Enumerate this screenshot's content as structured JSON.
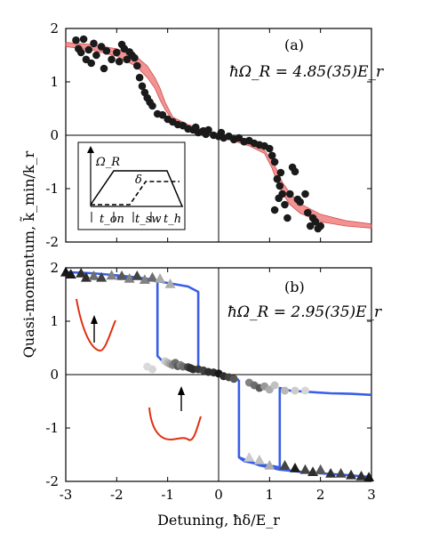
{
  "chart_data": [
    {
      "type": "scatter",
      "panel_label": "(a)",
      "annotation": "ħΩ_R = 4.85(35)E_r",
      "xlim": [
        -3,
        3
      ],
      "ylim": [
        -2,
        2
      ],
      "yticks": [
        "2",
        "1",
        "0",
        "-1",
        "-2"
      ],
      "ylabel": "Quasi-momentum, k̃_min/k_r",
      "band": {
        "x": [
          -3.0,
          -2.5,
          -2.0,
          -1.6,
          -1.4,
          -1.25,
          -1.15,
          -1.05,
          -0.9,
          -0.6,
          -0.3,
          0.0,
          0.3,
          0.6,
          0.9,
          1.05,
          1.15,
          1.25,
          1.4,
          1.6,
          2.0,
          2.5,
          3.0
        ],
        "upper": [
          1.74,
          1.7,
          1.62,
          1.46,
          1.3,
          1.08,
          0.88,
          0.62,
          0.34,
          0.2,
          0.11,
          0.02,
          -0.07,
          -0.16,
          -0.28,
          -0.48,
          -0.66,
          -0.88,
          -1.08,
          -1.28,
          -1.48,
          -1.6,
          -1.66
        ],
        "lower": [
          1.66,
          1.6,
          1.48,
          1.28,
          1.08,
          0.88,
          0.66,
          0.48,
          0.28,
          0.16,
          0.07,
          -0.02,
          -0.11,
          -0.2,
          -0.34,
          -0.62,
          -0.88,
          -1.08,
          -1.3,
          -1.46,
          -1.62,
          -1.7,
          -1.74
        ]
      },
      "points": [
        [
          -2.8,
          1.78
        ],
        [
          -2.75,
          1.62
        ],
        [
          -2.7,
          1.55
        ],
        [
          -2.65,
          1.8
        ],
        [
          -2.6,
          1.42
        ],
        [
          -2.55,
          1.6
        ],
        [
          -2.5,
          1.35
        ],
        [
          -2.45,
          1.72
        ],
        [
          -2.4,
          1.5
        ],
        [
          -2.3,
          1.66
        ],
        [
          -2.25,
          1.25
        ],
        [
          -2.2,
          1.58
        ],
        [
          -2.1,
          1.42
        ],
        [
          -2.0,
          1.55
        ],
        [
          -1.95,
          1.38
        ],
        [
          -1.9,
          1.7
        ],
        [
          -1.85,
          1.62
        ],
        [
          -1.8,
          1.42
        ],
        [
          -1.75,
          1.56
        ],
        [
          -1.7,
          1.5
        ],
        [
          -1.65,
          1.45
        ],
        [
          -1.6,
          1.3
        ],
        [
          -1.55,
          1.08
        ],
        [
          -1.5,
          0.92
        ],
        [
          -1.45,
          0.8
        ],
        [
          -1.4,
          0.7
        ],
        [
          -1.35,
          0.62
        ],
        [
          -1.3,
          0.55
        ],
        [
          -1.2,
          0.4
        ],
        [
          -1.1,
          0.38
        ],
        [
          -1.0,
          0.3
        ],
        [
          -0.9,
          0.25
        ],
        [
          -0.8,
          0.2
        ],
        [
          -0.7,
          0.18
        ],
        [
          -0.6,
          0.12
        ],
        [
          -0.5,
          0.1
        ],
        [
          -0.45,
          0.15
        ],
        [
          -0.4,
          0.05
        ],
        [
          -0.3,
          0.08
        ],
        [
          -0.25,
          0.02
        ],
        [
          -0.2,
          0.1
        ],
        [
          -0.1,
          0.0
        ],
        [
          0.0,
          -0.02
        ],
        [
          0.05,
          0.05
        ],
        [
          0.1,
          -0.05
        ],
        [
          0.2,
          -0.02
        ],
        [
          0.3,
          -0.08
        ],
        [
          0.4,
          -0.05
        ],
        [
          0.5,
          -0.12
        ],
        [
          0.6,
          -0.1
        ],
        [
          0.7,
          -0.15
        ],
        [
          0.8,
          -0.18
        ],
        [
          0.9,
          -0.2
        ],
        [
          1.0,
          -0.25
        ],
        [
          1.05,
          -0.38
        ],
        [
          1.1,
          -0.5
        ],
        [
          1.15,
          -0.82
        ],
        [
          1.2,
          -0.95
        ],
        [
          1.25,
          -1.1
        ],
        [
          1.3,
          -1.3
        ],
        [
          1.35,
          -1.55
        ],
        [
          1.1,
          -1.4
        ],
        [
          1.18,
          -1.18
        ],
        [
          1.22,
          -0.7
        ],
        [
          1.4,
          -1.1
        ],
        [
          1.45,
          -0.6
        ],
        [
          1.5,
          -0.68
        ],
        [
          1.55,
          -1.2
        ],
        [
          1.6,
          -1.25
        ],
        [
          1.7,
          -1.1
        ],
        [
          1.75,
          -1.45
        ],
        [
          1.8,
          -1.7
        ],
        [
          1.85,
          -1.55
        ],
        [
          1.9,
          -1.62
        ],
        [
          1.95,
          -1.75
        ],
        [
          2.0,
          -1.7
        ]
      ],
      "inset": {
        "labels": [
          "Ω_R",
          "δ",
          "t_on",
          "t_sw",
          "t_h"
        ]
      }
    },
    {
      "type": "line",
      "panel_label": "(b)",
      "annotation": "ħΩ_R = 2.95(35)E_r",
      "xlim": [
        -3,
        3
      ],
      "ylim": [
        -2,
        2
      ],
      "xticks": [
        "-3",
        "-2",
        "-1",
        "0",
        "1",
        "2",
        "3"
      ],
      "yticks": [
        "2",
        "1",
        "0",
        "-1",
        "-2"
      ],
      "xlabel": "Detuning, ħδ/E_r",
      "curves": [
        {
          "x": [
            -3.0,
            -2.5,
            -2.0,
            -1.6,
            -1.3,
            -1.2,
            -1.2,
            -1.1,
            -0.8,
            -0.5,
            -0.4
          ],
          "y": [
            1.92,
            1.9,
            1.86,
            1.82,
            1.78,
            1.75,
            0.35,
            0.25,
            0.18,
            0.12,
            0.1
          ]
        },
        {
          "x": [
            -0.4,
            -0.4,
            -0.6,
            -0.9,
            -1.2,
            -1.6,
            -2.0
          ],
          "y": [
            0.1,
            1.55,
            1.65,
            1.7,
            1.75,
            1.8,
            1.82
          ]
        },
        {
          "x": [
            0.4,
            0.4,
            0.5,
            0.8,
            1.1,
            1.2,
            1.2,
            1.4,
            1.7,
            2.2,
            2.6,
            3.0
          ],
          "y": [
            -0.1,
            -1.55,
            -1.62,
            -1.68,
            -1.72,
            -1.74,
            -0.25,
            -0.3,
            -0.32,
            -0.35,
            -0.36,
            -0.38
          ]
        },
        {
          "x": [
            0.4,
            0.8,
            1.2,
            1.6,
            2.0,
            2.5,
            3.0
          ],
          "y": [
            -1.55,
            -1.7,
            -1.78,
            -1.82,
            -1.85,
            -1.88,
            -1.92
          ]
        },
        {
          "x": [
            -0.4,
            -0.2,
            0.0,
            0.2,
            0.4
          ],
          "y": [
            0.1,
            0.05,
            0.0,
            -0.05,
            -0.1
          ]
        }
      ],
      "triangles": [
        [
          -3.0,
          1.92,
          1.0
        ],
        [
          -2.9,
          1.88,
          1.0
        ],
        [
          -2.7,
          1.9,
          0.9
        ],
        [
          -2.6,
          1.82,
          0.9
        ],
        [
          -2.45,
          1.85,
          0.6
        ],
        [
          -2.3,
          1.82,
          0.8
        ],
        [
          -2.1,
          1.86,
          0.5
        ],
        [
          -1.9,
          1.85,
          0.7
        ],
        [
          -1.75,
          1.8,
          0.5
        ],
        [
          -1.6,
          1.85,
          0.8
        ],
        [
          -1.45,
          1.78,
          0.5
        ],
        [
          -1.3,
          1.82,
          0.6
        ],
        [
          -1.15,
          1.8,
          0.3
        ],
        [
          -0.95,
          1.7,
          0.3
        ],
        [
          1.3,
          -1.7,
          0.8
        ],
        [
          1.5,
          -1.75,
          1.0
        ],
        [
          1.7,
          -1.78,
          0.8
        ],
        [
          1.85,
          -1.82,
          0.9
        ],
        [
          2.0,
          -1.78,
          0.7
        ],
        [
          2.2,
          -1.85,
          0.9
        ],
        [
          2.4,
          -1.85,
          0.8
        ],
        [
          2.6,
          -1.88,
          0.9
        ],
        [
          2.8,
          -1.9,
          0.9
        ],
        [
          2.95,
          -1.92,
          1.0
        ],
        [
          0.6,
          -1.55,
          0.15
        ],
        [
          0.8,
          -1.6,
          0.2
        ],
        [
          1.0,
          -1.7,
          0.3
        ]
      ],
      "circles": [
        [
          -1.05,
          0.25,
          0.15
        ],
        [
          -1.0,
          0.22,
          0.25
        ],
        [
          -0.95,
          0.2,
          0.35
        ],
        [
          -0.9,
          0.18,
          0.5
        ],
        [
          -0.85,
          0.22,
          0.6
        ],
        [
          -0.8,
          0.16,
          0.7
        ],
        [
          -0.75,
          0.18,
          0.5
        ],
        [
          -0.7,
          0.15,
          0.6
        ],
        [
          -0.6,
          0.14,
          0.8
        ],
        [
          -0.55,
          0.12,
          0.9
        ],
        [
          -0.5,
          0.1,
          0.9
        ],
        [
          -0.4,
          0.1,
          0.85
        ],
        [
          -0.3,
          0.08,
          0.8
        ],
        [
          -0.2,
          0.05,
          0.9
        ],
        [
          -0.1,
          0.04,
          0.9
        ],
        [
          0.0,
          0.02,
          1.0
        ],
        [
          0.1,
          -0.03,
          0.9
        ],
        [
          0.2,
          -0.05,
          0.8
        ],
        [
          0.3,
          -0.08,
          0.7
        ],
        [
          0.6,
          -0.15,
          0.5
        ],
        [
          0.7,
          -0.2,
          0.6
        ],
        [
          0.8,
          -0.25,
          0.7
        ],
        [
          0.9,
          -0.22,
          0.4
        ],
        [
          1.0,
          -0.28,
          0.3
        ],
        [
          1.1,
          -0.2,
          0.2
        ],
        [
          1.3,
          -0.3,
          0.25
        ],
        [
          1.5,
          -0.3,
          0.15
        ],
        [
          1.7,
          -0.3,
          0.1
        ],
        [
          -1.3,
          0.1,
          0.1
        ],
        [
          -1.4,
          0.15,
          0.08
        ]
      ]
    }
  ]
}
